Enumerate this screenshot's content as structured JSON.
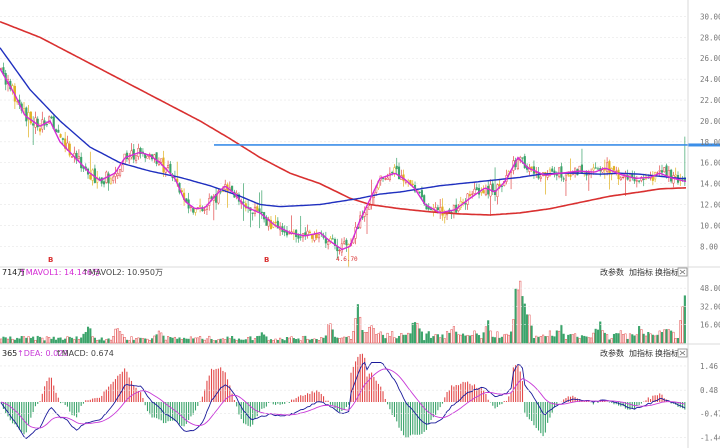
{
  "colors": {
    "up": "#e24a4a",
    "down": "#3aa36a",
    "ma_magenta": "#d42ad4",
    "ma_blue": "#1f2fbf",
    "ma_red": "#d93030",
    "candle_yellow": "#e0b020",
    "hline": "#3b8ee8",
    "grid": "#e6e6e6",
    "dif": "#1a1a9a",
    "dea": "#c83ad8"
  },
  "price_axis": {
    "ticks": [
      "30.00",
      "28.00",
      "26.00",
      "24.00",
      "22.00",
      "20.00",
      "18.00",
      "16.00",
      "14.00",
      "12.00",
      "10.00",
      "8.00"
    ],
    "range": [
      6.5,
      31.0
    ]
  },
  "volume_panel": {
    "header_left": "714万",
    "mavol1_label": "MAVOL1: 14.146万",
    "mavol2_label": "MAVOL2: 10.950万",
    "ticks": [
      "48.00",
      "32.00",
      "16.00"
    ],
    "buttons": [
      "改参数",
      "加指标",
      "换指标"
    ]
  },
  "macd_panel": {
    "header_left": "365",
    "dea_label": "DEA: 0.029",
    "macd_label": "MACD: 0.674",
    "ticks": [
      "1.46",
      "0.48",
      "-0.47",
      "-1.44"
    ],
    "buttons": [
      "改参数",
      "加指标",
      "换指标"
    ]
  },
  "markers": [
    "B",
    "B"
  ],
  "price_label_low": "4.6.70",
  "chart_data": {
    "type": "candlestick",
    "title": "",
    "xlabel": "",
    "ylabel": "",
    "ylim": [
      6.5,
      31.0
    ],
    "x_points": 300,
    "ma_blue": [
      [
        0,
        27.0
      ],
      [
        30,
        23.0
      ],
      [
        60,
        20.0
      ],
      [
        90,
        17.5
      ],
      [
        120,
        16.0
      ],
      [
        150,
        15.2
      ],
      [
        180,
        14.6
      ],
      [
        210,
        13.8
      ],
      [
        240,
        12.8
      ],
      [
        260,
        12.0
      ],
      [
        280,
        11.8
      ],
      [
        300,
        11.9
      ],
      [
        320,
        12.0
      ],
      [
        340,
        12.3
      ],
      [
        360,
        12.6
      ],
      [
        380,
        13.0
      ],
      [
        400,
        13.2
      ],
      [
        420,
        13.5
      ],
      [
        440,
        13.8
      ],
      [
        460,
        14.0
      ],
      [
        480,
        14.2
      ],
      [
        500,
        14.4
      ],
      [
        520,
        14.6
      ],
      [
        540,
        14.9
      ],
      [
        560,
        15.0
      ],
      [
        580,
        15.0
      ],
      [
        600,
        14.9
      ],
      [
        620,
        15.0
      ],
      [
        640,
        14.9
      ],
      [
        660,
        14.7
      ],
      [
        680,
        14.5
      ],
      [
        686,
        14.5
      ]
    ],
    "ma_red": [
      [
        0,
        29.5
      ],
      [
        40,
        28.0
      ],
      [
        80,
        26.0
      ],
      [
        120,
        24.0
      ],
      [
        160,
        22.0
      ],
      [
        200,
        20.0
      ],
      [
        230,
        18.3
      ],
      [
        260,
        16.5
      ],
      [
        290,
        15.0
      ],
      [
        320,
        14.0
      ],
      [
        350,
        12.6
      ],
      [
        370,
        12.0
      ],
      [
        400,
        11.6
      ],
      [
        430,
        11.3
      ],
      [
        460,
        11.1
      ],
      [
        490,
        11.0
      ],
      [
        520,
        11.2
      ],
      [
        550,
        11.6
      ],
      [
        580,
        12.2
      ],
      [
        610,
        12.8
      ],
      [
        640,
        13.2
      ],
      [
        660,
        13.5
      ],
      [
        686,
        13.6
      ]
    ],
    "ma_magenta": [
      [
        0,
        25.0
      ],
      [
        15,
        22.5
      ],
      [
        25,
        20.5
      ],
      [
        40,
        19.5
      ],
      [
        50,
        20.0
      ],
      [
        60,
        18.0
      ],
      [
        75,
        16.5
      ],
      [
        90,
        15.0
      ],
      [
        100,
        14.3
      ],
      [
        115,
        15.0
      ],
      [
        125,
        16.5
      ],
      [
        140,
        17.0
      ],
      [
        150,
        16.7
      ],
      [
        160,
        16.0
      ],
      [
        175,
        14.5
      ],
      [
        185,
        12.3
      ],
      [
        195,
        11.6
      ],
      [
        205,
        11.7
      ],
      [
        215,
        12.8
      ],
      [
        225,
        13.8
      ],
      [
        235,
        13.0
      ],
      [
        245,
        11.8
      ],
      [
        260,
        11.2
      ],
      [
        275,
        10.0
      ],
      [
        290,
        9.3
      ],
      [
        305,
        9.0
      ],
      [
        320,
        9.3
      ],
      [
        330,
        8.5
      ],
      [
        342,
        7.7
      ],
      [
        350,
        8.0
      ],
      [
        360,
        10.5
      ],
      [
        370,
        12.5
      ],
      [
        380,
        14.5
      ],
      [
        395,
        15.0
      ],
      [
        405,
        14.4
      ],
      [
        415,
        13.5
      ],
      [
        425,
        12.0
      ],
      [
        440,
        11.2
      ],
      [
        455,
        11.5
      ],
      [
        470,
        12.6
      ],
      [
        485,
        13.6
      ],
      [
        495,
        13.2
      ],
      [
        505,
        14.2
      ],
      [
        518,
        16.5
      ],
      [
        528,
        15.5
      ],
      [
        545,
        14.8
      ],
      [
        560,
        15.0
      ],
      [
        580,
        15.2
      ],
      [
        595,
        15.1
      ],
      [
        605,
        15.5
      ],
      [
        620,
        14.9
      ],
      [
        635,
        14.5
      ],
      [
        650,
        14.6
      ],
      [
        660,
        15.0
      ],
      [
        670,
        14.6
      ],
      [
        686,
        14.2
      ]
    ],
    "price_hline": 17.7,
    "last_close": 14.2,
    "last_high": 18.5
  }
}
